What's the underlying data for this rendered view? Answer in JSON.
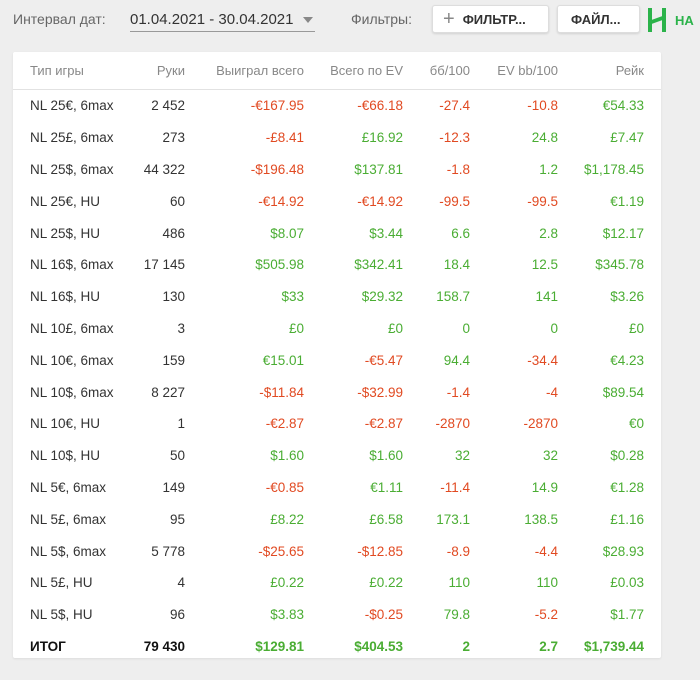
{
  "toolbar": {
    "date_label": "Интервал дат:",
    "date_range": "01.04.2021 - 30.04.2021",
    "filters_label": "Фильтры:",
    "filter_button": "ФИЛЬТР...",
    "file_button": "ФАЙЛ...",
    "logo_text": "НА"
  },
  "table": {
    "headers": [
      "Тип игры",
      "Руки",
      "Выиграл всего",
      "Всего по EV",
      "бб/100",
      "EV bb/100",
      "Рейк"
    ],
    "rows": [
      [
        "NL 25€, 6max",
        "2 452",
        "-€167.95",
        "-€66.18",
        "-27.4",
        "-10.8",
        "€54.33"
      ],
      [
        "NL 25£, 6max",
        "273",
        "-£8.41",
        "£16.92",
        "-12.3",
        "24.8",
        "£7.47"
      ],
      [
        "NL 25$, 6max",
        "44 322",
        "-$196.48",
        "$137.81",
        "-1.8",
        "1.2",
        "$1,178.45"
      ],
      [
        "NL 25€, HU",
        "60",
        "-€14.92",
        "-€14.92",
        "-99.5",
        "-99.5",
        "€1.19"
      ],
      [
        "NL 25$, HU",
        "486",
        "$8.07",
        "$3.44",
        "6.6",
        "2.8",
        "$12.17"
      ],
      [
        "NL 16$, 6max",
        "17 145",
        "$505.98",
        "$342.41",
        "18.4",
        "12.5",
        "$345.78"
      ],
      [
        "NL 16$, HU",
        "130",
        "$33",
        "$29.32",
        "158.7",
        "141",
        "$3.26"
      ],
      [
        "NL 10£, 6max",
        "3",
        "£0",
        "£0",
        "0",
        "0",
        "£0"
      ],
      [
        "NL 10€, 6max",
        "159",
        "€15.01",
        "-€5.47",
        "94.4",
        "-34.4",
        "€4.23"
      ],
      [
        "NL 10$, 6max",
        "8 227",
        "-$11.84",
        "-$32.99",
        "-1.4",
        "-4",
        "$89.54"
      ],
      [
        "NL 10€, HU",
        "1",
        "-€2.87",
        "-€2.87",
        "-2870",
        "-2870",
        "€0"
      ],
      [
        "NL 10$, HU",
        "50",
        "$1.60",
        "$1.60",
        "32",
        "32",
        "$0.28"
      ],
      [
        "NL 5€, 6max",
        "149",
        "-€0.85",
        "€1.11",
        "-11.4",
        "14.9",
        "€1.28"
      ],
      [
        "NL 5£, 6max",
        "95",
        "£8.22",
        "£6.58",
        "173.1",
        "138.5",
        "£1.16"
      ],
      [
        "NL 5$, 6max",
        "5 778",
        "-$25.65",
        "-$12.85",
        "-8.9",
        "-4.4",
        "$28.93"
      ],
      [
        "NL 5£, HU",
        "4",
        "£0.22",
        "£0.22",
        "110",
        "110",
        "£0.03"
      ],
      [
        "NL 5$, HU",
        "96",
        "$3.83",
        "-$0.25",
        "79.8",
        "-5.2",
        "$1.77"
      ]
    ],
    "total": [
      "ИТОГ",
      "79 430",
      "$129.81",
      "$404.53",
      "2",
      "2.7",
      "$1,739.44"
    ]
  },
  "colors": {
    "positive": "#4aad33",
    "negative": "#e14a22",
    "brand": "#2bb34a"
  }
}
